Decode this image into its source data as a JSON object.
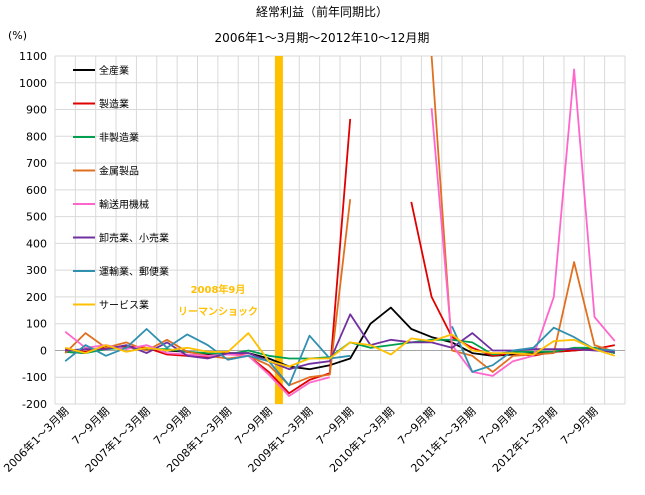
{
  "chart_data": {
    "type": "line",
    "title": "経常利益（前年同期比）",
    "subtitle": "2006年1～3月期～2012年10～12月期",
    "ylabel": "(%)",
    "ylim": [
      -200,
      1100
    ],
    "yticks": [
      -200,
      -100,
      0,
      100,
      200,
      300,
      400,
      500,
      600,
      700,
      800,
      900,
      1000,
      1100
    ],
    "x_tick_labels": [
      {
        "index": 0,
        "label": "2006年1～3月期"
      },
      {
        "index": 2,
        "label": "7～9月期"
      },
      {
        "index": 4,
        "label": "2007年1～3月期"
      },
      {
        "index": 6,
        "label": "7～9月期"
      },
      {
        "index": 8,
        "label": "2008年1～3月期"
      },
      {
        "index": 10,
        "label": "7～9月期"
      },
      {
        "index": 12,
        "label": "2009年1～3月期"
      },
      {
        "index": 14,
        "label": "7～9月期"
      },
      {
        "index": 16,
        "label": "2010年1～3月期"
      },
      {
        "index": 18,
        "label": "7～9月期"
      },
      {
        "index": 20,
        "label": "2011年1～3月期"
      },
      {
        "index": 22,
        "label": "7～9月期"
      },
      {
        "index": 24,
        "label": "2012年1～3月期"
      },
      {
        "index": 26,
        "label": "7～9月期"
      }
    ],
    "x_count": 28,
    "grid": true,
    "legend_position": "top-left",
    "series": [
      {
        "name": "全産業",
        "color": "#000000",
        "values": [
          -5,
          -10,
          15,
          10,
          5,
          0,
          -5,
          -15,
          -10,
          -10,
          -30,
          -60,
          -70,
          -55,
          -30,
          100,
          160,
          80,
          50,
          30,
          -10,
          -20,
          -15,
          -10,
          -5,
          0,
          10,
          -10
        ]
      },
      {
        "name": "製造業",
        "color": "#E00000",
        "values": [
          5,
          -5,
          10,
          15,
          10,
          -15,
          -20,
          -25,
          -10,
          -20,
          -80,
          -160,
          -110,
          -85,
          865,
          null,
          null,
          555,
          200,
          50,
          10,
          -20,
          -10,
          -20,
          -5,
          0,
          5,
          20
        ]
      },
      {
        "name": "非製造業",
        "color": "#00A050",
        "values": [
          -5,
          -10,
          5,
          10,
          5,
          5,
          -5,
          -10,
          -15,
          0,
          -20,
          -30,
          -30,
          -25,
          30,
          10,
          20,
          30,
          40,
          40,
          30,
          -15,
          -5,
          -5,
          -5,
          10,
          10,
          -10
        ]
      },
      {
        "name": "金属製品",
        "color": "#E07020",
        "values": [
          -10,
          65,
          10,
          30,
          0,
          40,
          -5,
          -20,
          -30,
          -20,
          -55,
          -130,
          -100,
          -90,
          565,
          null,
          null,
          null,
          1100,
          0,
          -20,
          -80,
          -20,
          -15,
          -10,
          330,
          20,
          -5
        ]
      },
      {
        "name": "輸送用機械",
        "color": "#FF66CC",
        "values": [
          70,
          10,
          20,
          5,
          20,
          -10,
          -15,
          -20,
          -15,
          -20,
          -90,
          -170,
          -120,
          -100,
          null,
          null,
          null,
          null,
          905,
          20,
          -80,
          -95,
          -40,
          -20,
          200,
          1050,
          125,
          35
        ]
      },
      {
        "name": "卸売業、小売業",
        "color": "#7030A0",
        "values": [
          0,
          5,
          5,
          20,
          -10,
          30,
          -20,
          -30,
          -10,
          -10,
          -40,
          -70,
          -50,
          -40,
          135,
          20,
          40,
          30,
          30,
          10,
          65,
          0,
          0,
          5,
          5,
          5,
          0,
          -5
        ]
      },
      {
        "name": "運輸業、郵便業",
        "color": "#3090B0",
        "values": [
          -40,
          20,
          -20,
          10,
          80,
          10,
          60,
          20,
          -35,
          -20,
          -40,
          -130,
          55,
          -30,
          -20,
          null,
          null,
          null,
          null,
          90,
          -80,
          -55,
          0,
          10,
          85,
          50,
          5,
          0
        ]
      },
      {
        "name": "サービス業",
        "color": "#FFC000",
        "values": [
          10,
          -10,
          20,
          -5,
          10,
          0,
          10,
          -5,
          -5,
          65,
          -40,
          -60,
          -30,
          -30,
          30,
          20,
          -15,
          45,
          35,
          60,
          0,
          -10,
          -10,
          -15,
          35,
          40,
          5,
          -20
        ]
      }
    ],
    "annotation": {
      "line1": "2008年9月",
      "line2": "リーマンショック",
      "color": "#FFC000",
      "x_index": 10.5
    }
  }
}
